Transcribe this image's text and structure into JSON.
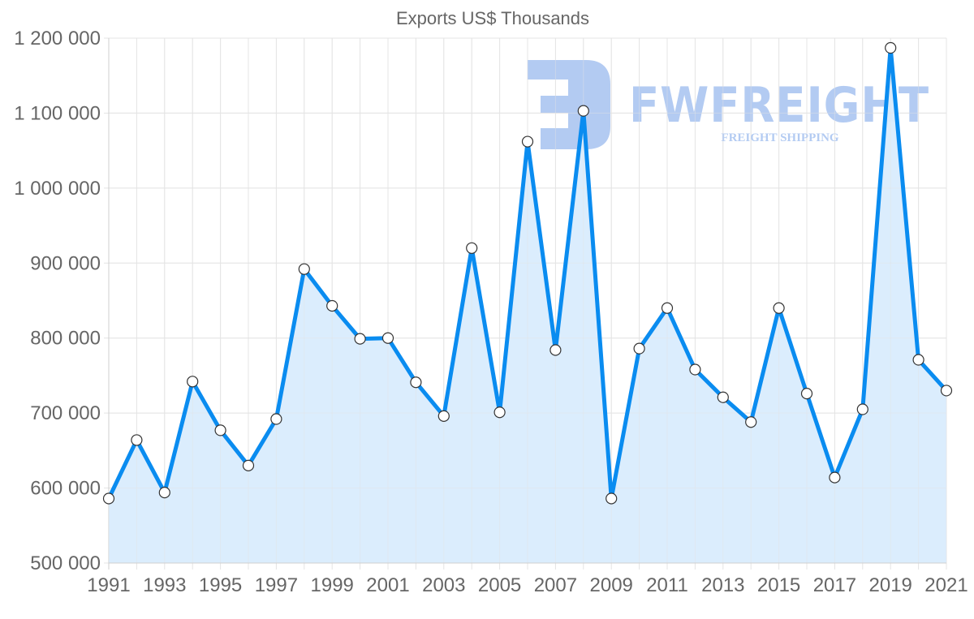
{
  "chart_data": {
    "type": "line",
    "title": "Exports US$ Thousands",
    "xlabel": "",
    "ylabel": "",
    "ylim": [
      500000,
      1200000
    ],
    "y_ticks": [
      "1 200 000",
      "1 100 000",
      "1 000 000",
      "900 000",
      "800 000",
      "700 000",
      "600 000",
      "500 000"
    ],
    "y_tick_values": [
      1200000,
      1100000,
      1000000,
      900000,
      800000,
      700000,
      600000,
      500000
    ],
    "x_tick_labels": [
      "1991",
      "1993",
      "1995",
      "1997",
      "1999",
      "2001",
      "2003",
      "2005",
      "2007",
      "2009",
      "2011",
      "2013",
      "2015",
      "2017",
      "2019",
      "2021"
    ],
    "x": [
      1991,
      1992,
      1993,
      1994,
      1995,
      1996,
      1997,
      1998,
      1999,
      2000,
      2001,
      2002,
      2003,
      2004,
      2005,
      2006,
      2007,
      2008,
      2009,
      2010,
      2011,
      2012,
      2013,
      2014,
      2015,
      2016,
      2017,
      2018,
      2019,
      2020,
      2021
    ],
    "series": [
      {
        "name": "Exports US$ Thousands",
        "values": [
          586000,
          664000,
          594000,
          742000,
          677000,
          630000,
          692000,
          892000,
          843000,
          799000,
          800000,
          741000,
          696000,
          920000,
          701000,
          1062000,
          784000,
          1103000,
          586000,
          786000,
          840000,
          758000,
          721000,
          688000,
          840000,
          726000,
          614000,
          705000,
          1187000,
          771000,
          730000
        ],
        "line_color": "#0a8cf0",
        "fill_color": "#d9ecfd",
        "marker_fill": "#ffffff",
        "marker_stroke": "#333333"
      }
    ],
    "grid": true,
    "legend": "none",
    "filled_area": true
  },
  "watermark": {
    "brand": "FWFREIGHT",
    "tagline": "FREIGHT SHIPPING",
    "color": "#b3cbf2"
  }
}
